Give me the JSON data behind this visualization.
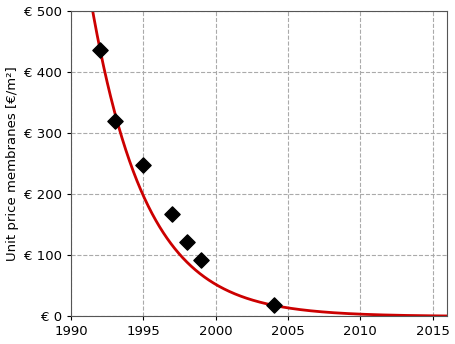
{
  "ylabel": "Unit price membranes [€/m²]",
  "xlim": [
    1990,
    2016
  ],
  "ylim": [
    0,
    500
  ],
  "xticks": [
    1990,
    1995,
    2000,
    2005,
    2010,
    2015
  ],
  "yticks": [
    0,
    100,
    200,
    300,
    400,
    500
  ],
  "ytick_labels": [
    "€ 0",
    "€ 100",
    "€ 200",
    "€ 300",
    "€ 400",
    "€ 500"
  ],
  "data_points_x": [
    1992,
    1993,
    1995,
    1997,
    1998,
    1999,
    2004
  ],
  "data_points_y": [
    435,
    320,
    248,
    167,
    122,
    93,
    18
  ],
  "curve_color": "#cc0000",
  "curve_linewidth": 2.0,
  "marker_color": "black",
  "marker_size": 60,
  "grid_color": "#aaaaaa",
  "grid_linestyle": "--",
  "background_color": "#ffffff",
  "curve_A": 280000000.0,
  "curve_k": 0.52,
  "curve_x0": 1990
}
